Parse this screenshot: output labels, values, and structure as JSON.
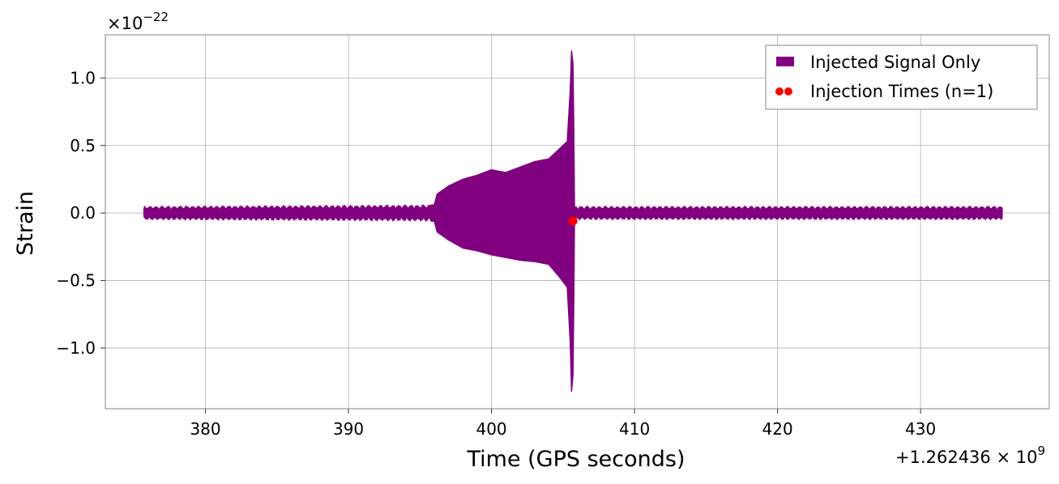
{
  "chart_data": {
    "type": "line",
    "xlabel": "Time (GPS seconds)",
    "ylabel": "Strain",
    "x_offset_label": "+1.262436",
    "y_multiplier_label": "×10",
    "y_exponent_label": "−22",
    "x_exponent_label": "9",
    "xlim": [
      373,
      439
    ],
    "ylim": [
      -1.45,
      1.32
    ],
    "x_ticks": [
      380,
      390,
      400,
      410,
      420,
      430
    ],
    "x_tick_labels": [
      "380",
      "390",
      "400",
      "410",
      "420",
      "430"
    ],
    "y_ticks": [
      1.0,
      0.5,
      0.0,
      -0.5,
      -1.0
    ],
    "y_tick_labels": [
      "1.0",
      "0.5",
      "0.0",
      "−0.5",
      "−1.0"
    ],
    "grid": true,
    "legend_position": "top-right",
    "series": [
      {
        "name": "Injected Signal Only",
        "kind": "filled-envelope",
        "color": "#800080",
        "x_start": 375.7,
        "x_end": 435.7,
        "envelope": {
          "x": [
            375.7,
            395.0,
            396.0,
            396.2,
            397.0,
            398.0,
            399.0,
            400.0,
            401.0,
            402.0,
            403.0,
            404.0,
            404.8,
            405.3,
            405.5,
            405.6,
            405.7,
            405.78,
            405.8,
            405.9,
            406.0,
            435.7
          ],
          "upper": [
            0.05,
            0.06,
            0.06,
            0.14,
            0.2,
            0.25,
            0.28,
            0.32,
            0.3,
            0.34,
            0.38,
            0.4,
            0.48,
            0.53,
            0.9,
            1.2,
            1.1,
            0.4,
            0.05,
            0.05,
            0.05,
            0.05
          ],
          "lower": [
            -0.05,
            -0.06,
            -0.06,
            -0.14,
            -0.2,
            -0.26,
            -0.28,
            -0.31,
            -0.33,
            -0.35,
            -0.36,
            -0.38,
            -0.48,
            -0.55,
            -0.95,
            -1.32,
            -1.2,
            -0.4,
            -0.05,
            -0.05,
            -0.05,
            -0.05
          ]
        }
      },
      {
        "name": "Injection Times (n=1)",
        "kind": "scatter",
        "color": "#ff0000",
        "points": [
          {
            "x": 405.7,
            "y": -0.06
          }
        ]
      }
    ]
  }
}
